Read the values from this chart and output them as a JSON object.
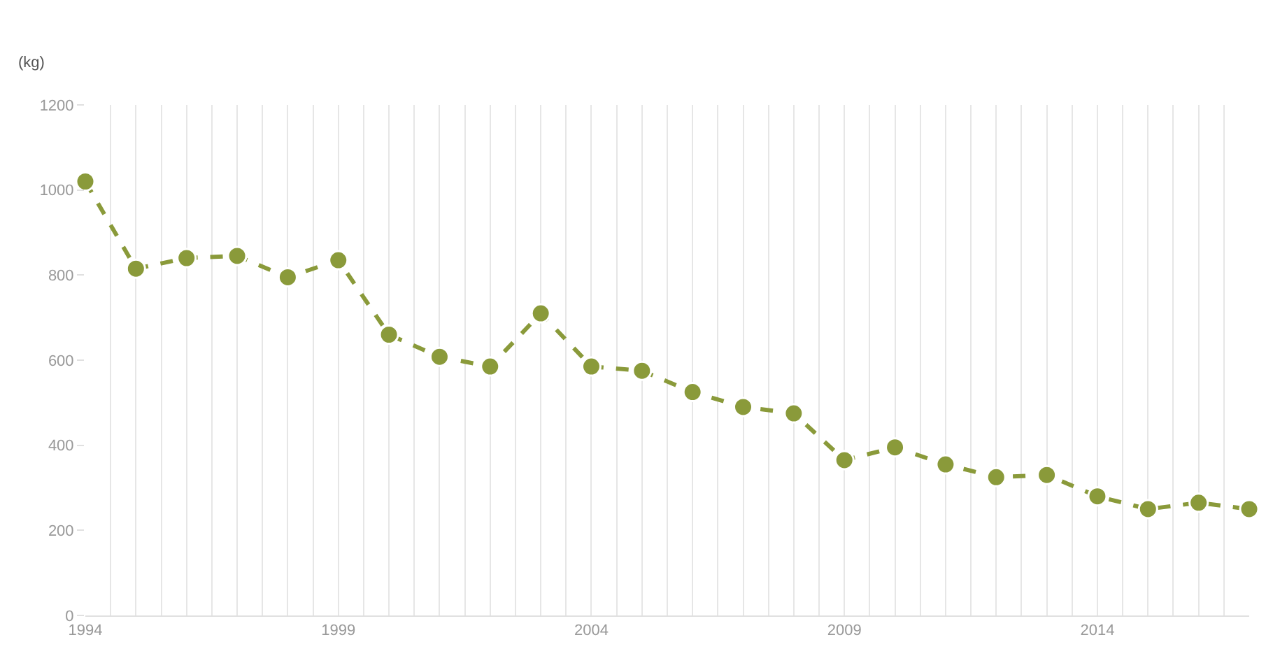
{
  "chart_data": {
    "type": "line",
    "ylabel": "(kg)",
    "x": [
      1994,
      1995,
      1996,
      1997,
      1998,
      1999,
      2000,
      2001,
      2002,
      2003,
      2004,
      2005,
      2006,
      2007,
      2008,
      2009,
      2010,
      2011,
      2012,
      2013,
      2014,
      2015,
      2016,
      2017
    ],
    "series": [
      {
        "color": "#8a9a3a",
        "values": [
          1020,
          815,
          840,
          845,
          795,
          835,
          660,
          608,
          585,
          710,
          585,
          575,
          525,
          490,
          475,
          365,
          395,
          355,
          325,
          330,
          280,
          250,
          265,
          250
        ]
      }
    ],
    "xlim": [
      1994,
      2017
    ],
    "ylim": [
      0,
      1200
    ],
    "xticks": [
      1994,
      {
        "value": 1994.5,
        "label": null
      },
      {
        "value": 1995,
        "label": null
      },
      {
        "value": 1995.5,
        "label": null
      },
      {
        "value": 1996,
        "label": null
      },
      {
        "value": 1996.5,
        "label": null
      },
      {
        "value": 1997,
        "label": null
      },
      {
        "value": 1997.5,
        "label": null
      },
      {
        "value": 1998,
        "label": null
      },
      {
        "value": 1998.5,
        "label": null
      },
      1999,
      {
        "value": 1999.5,
        "label": null
      },
      {
        "value": 2000,
        "label": null
      },
      {
        "value": 2000.5,
        "label": null
      },
      {
        "value": 2001,
        "label": null
      },
      {
        "value": 2001.5,
        "label": null
      },
      {
        "value": 2002,
        "label": null
      },
      {
        "value": 2002.5,
        "label": null
      },
      {
        "value": 2003,
        "label": null
      },
      {
        "value": 2003.5,
        "label": null
      },
      2004,
      {
        "value": 2004.5,
        "label": null
      },
      {
        "value": 2005,
        "label": null
      },
      {
        "value": 2005.5,
        "label": null
      },
      {
        "value": 2006,
        "label": null
      },
      {
        "value": 2006.5,
        "label": null
      },
      {
        "value": 2007,
        "label": null
      },
      {
        "value": 2007.5,
        "label": null
      },
      {
        "value": 2008,
        "label": null
      },
      {
        "value": 2008.5,
        "label": null
      },
      2009,
      {
        "value": 2009.5,
        "label": null
      },
      {
        "value": 2010,
        "label": null
      },
      {
        "value": 2010.5,
        "label": null
      },
      {
        "value": 2011,
        "label": null
      },
      {
        "value": 2011.5,
        "label": null
      },
      {
        "value": 2012,
        "label": null
      },
      {
        "value": 2012.5,
        "label": null
      },
      {
        "value": 2013,
        "label": null
      },
      {
        "value": 2013.5,
        "label": null
      },
      2014,
      {
        "value": 2014.5,
        "label": null
      },
      {
        "value": 2015,
        "label": null
      },
      {
        "value": 2015.5,
        "label": null
      },
      {
        "value": 2016,
        "label": null
      },
      {
        "value": 2016.5,
        "label": null
      }
    ],
    "yticks": [
      0,
      200,
      400,
      600,
      800,
      1000,
      1200
    ],
    "grid": "x",
    "marker": "circle",
    "line_style": "dashed"
  }
}
